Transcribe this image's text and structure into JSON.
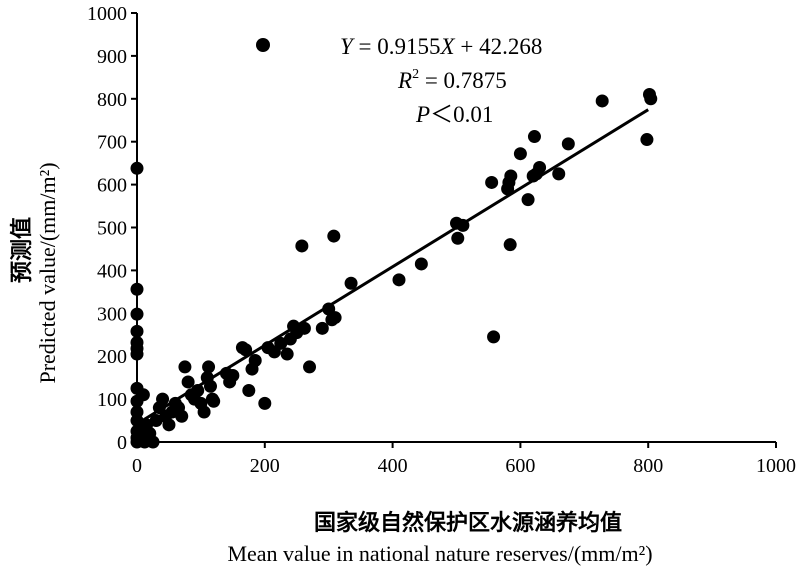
{
  "chart_data": {
    "type": "scatter",
    "xlabel_cn": "国家级自然保护区水源涵养均值",
    "xlabel_en": "Mean value in national nature reserves/(mm/m²)",
    "ylabel_cn": "预测值",
    "ylabel_en": "Predicted value/(mm/m²)",
    "xlim": [
      0,
      1000
    ],
    "ylim": [
      0,
      1000
    ],
    "xticks": [
      "0",
      "200",
      "400",
      "600",
      "800",
      "1000"
    ],
    "yticks": [
      "0",
      "100",
      "200",
      "300",
      "400",
      "500",
      "600",
      "700",
      "800",
      "900",
      "1000"
    ],
    "legend_marker": "filled-circle",
    "equation": {
      "line1_var": "Y",
      "line1_mid": " = 0.9155",
      "line1_var2": "X",
      "line1_rest": " + 42.268",
      "line2_var": "R",
      "line2_sup": "2",
      "line2_rest": " = 0.7875",
      "line3_var": "P",
      "line3_rest": "＜0.01"
    },
    "fit_line": {
      "slope": 0.9155,
      "intercept": 42.268,
      "x_range": [
        0,
        800
      ]
    },
    "points": [
      [
        0,
        638
      ],
      [
        0,
        356
      ],
      [
        0,
        298
      ],
      [
        0,
        258
      ],
      [
        0,
        232
      ],
      [
        0,
        218
      ],
      [
        0,
        205
      ],
      [
        0,
        125
      ],
      [
        0,
        95
      ],
      [
        0,
        70
      ],
      [
        0,
        50
      ],
      [
        0,
        25
      ],
      [
        0,
        10
      ],
      [
        0,
        0
      ],
      [
        5,
        15
      ],
      [
        8,
        5
      ],
      [
        10,
        110
      ],
      [
        10,
        30
      ],
      [
        12,
        0
      ],
      [
        15,
        40
      ],
      [
        18,
        10
      ],
      [
        20,
        20
      ],
      [
        25,
        0
      ],
      [
        30,
        50
      ],
      [
        35,
        80
      ],
      [
        40,
        100
      ],
      [
        45,
        60
      ],
      [
        50,
        40
      ],
      [
        55,
        70
      ],
      [
        60,
        90
      ],
      [
        65,
        80
      ],
      [
        70,
        60
      ],
      [
        75,
        175
      ],
      [
        80,
        140
      ],
      [
        85,
        110
      ],
      [
        90,
        100
      ],
      [
        95,
        120
      ],
      [
        100,
        90
      ],
      [
        105,
        70
      ],
      [
        110,
        150
      ],
      [
        112,
        175
      ],
      [
        115,
        130
      ],
      [
        118,
        100
      ],
      [
        120,
        95
      ],
      [
        140,
        160
      ],
      [
        145,
        140
      ],
      [
        150,
        155
      ],
      [
        165,
        220
      ],
      [
        170,
        215
      ],
      [
        175,
        120
      ],
      [
        180,
        170
      ],
      [
        185,
        190
      ],
      [
        200,
        90
      ],
      [
        205,
        220
      ],
      [
        215,
        210
      ],
      [
        225,
        230
      ],
      [
        235,
        205
      ],
      [
        240,
        240
      ],
      [
        245,
        270
      ],
      [
        250,
        255
      ],
      [
        262,
        265
      ],
      [
        270,
        175
      ],
      [
        290,
        265
      ],
      [
        300,
        310
      ],
      [
        305,
        285
      ],
      [
        310,
        290
      ],
      [
        335,
        370
      ],
      [
        410,
        378
      ],
      [
        445,
        415
      ],
      [
        258,
        457
      ],
      [
        308,
        480
      ],
      [
        500,
        510
      ],
      [
        502,
        475
      ],
      [
        510,
        505
      ],
      [
        555,
        605
      ],
      [
        558,
        245
      ],
      [
        580,
        590
      ],
      [
        582,
        605
      ],
      [
        584,
        460
      ],
      [
        585,
        620
      ],
      [
        600,
        672
      ],
      [
        612,
        565
      ],
      [
        620,
        620
      ],
      [
        622,
        712
      ],
      [
        625,
        625
      ],
      [
        630,
        640
      ],
      [
        660,
        625
      ],
      [
        675,
        695
      ],
      [
        728,
        795
      ],
      [
        798,
        705
      ],
      [
        802,
        810
      ],
      [
        804,
        800
      ]
    ]
  }
}
